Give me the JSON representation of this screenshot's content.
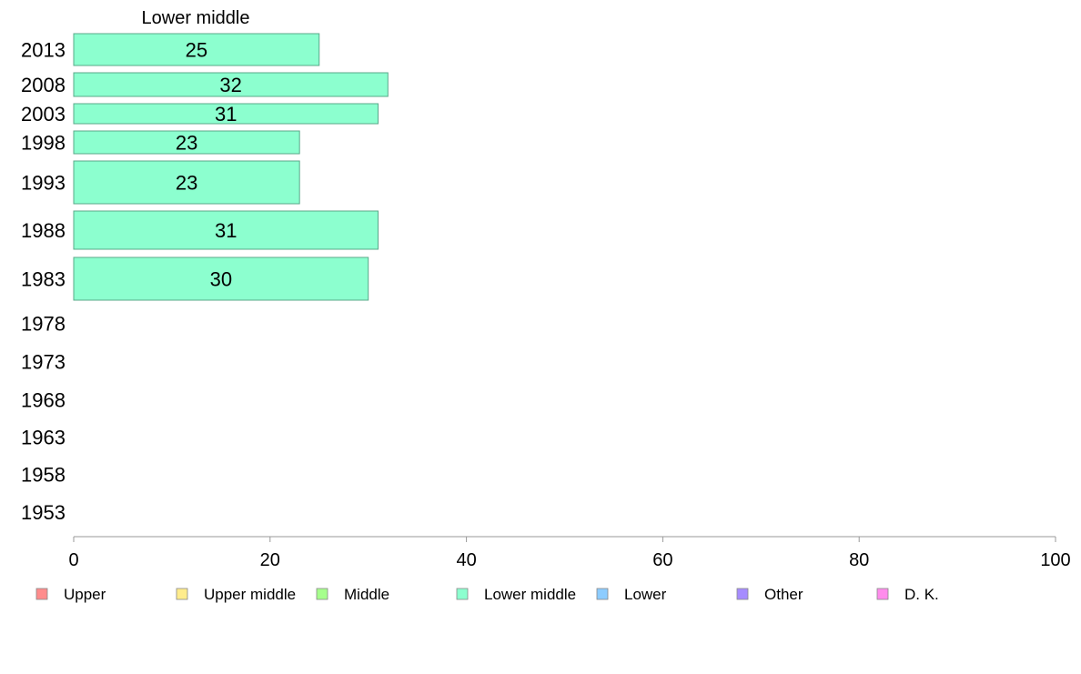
{
  "chart_data": {
    "type": "bar",
    "orientation": "horizontal",
    "title": "Lower middle",
    "categories": [
      "2013",
      "2008",
      "2003",
      "1998",
      "1993",
      "1988",
      "1983",
      "1978",
      "1973",
      "1968",
      "1963",
      "1958",
      "1953"
    ],
    "values": [
      25,
      32,
      31,
      23,
      23,
      31,
      30,
      null,
      null,
      null,
      null,
      null,
      null
    ],
    "series_color": "#8cffcf",
    "xlim": [
      0,
      100
    ],
    "xticks": [
      0,
      20,
      40,
      60,
      80,
      100
    ],
    "grid": false,
    "legend_position": "bottom",
    "legend": [
      {
        "label": "Upper",
        "color": "#ff8c8c"
      },
      {
        "label": "Upper middle",
        "color": "#ffec8c"
      },
      {
        "label": "Middle",
        "color": "#a6ff8c"
      },
      {
        "label": "Lower middle",
        "color": "#8cffcf"
      },
      {
        "label": "Lower",
        "color": "#8cccff"
      },
      {
        "label": "Other",
        "color": "#a68cff"
      },
      {
        "label": "D. K.",
        "color": "#ff8cec"
      }
    ]
  }
}
